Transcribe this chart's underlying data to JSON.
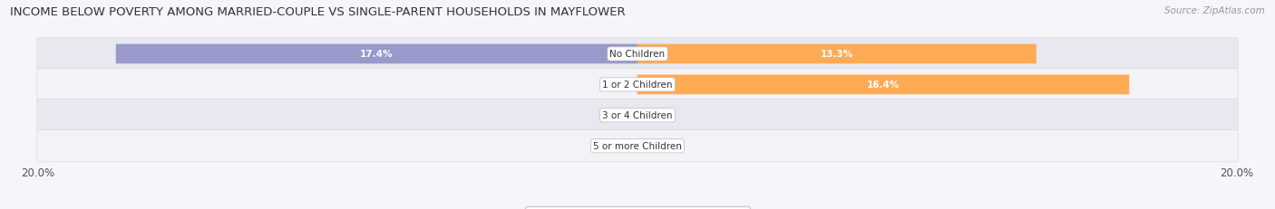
{
  "title": "INCOME BELOW POVERTY AMONG MARRIED-COUPLE VS SINGLE-PARENT HOUSEHOLDS IN MAYFLOWER",
  "source": "Source: ZipAtlas.com",
  "categories": [
    "No Children",
    "1 or 2 Children",
    "3 or 4 Children",
    "5 or more Children"
  ],
  "married_values": [
    17.4,
    0.0,
    0.0,
    0.0
  ],
  "single_values": [
    13.3,
    16.4,
    0.0,
    0.0
  ],
  "axis_max": 20.0,
  "married_color": "#9999cc",
  "single_color": "#ffaa55",
  "bar_height": 0.62,
  "row_bg_even": "#e8e8f0",
  "row_bg_odd": "#f2f2f7",
  "fig_bg": "#f5f5fa",
  "label_dark": "#555555",
  "title_fontsize": 9.5,
  "source_fontsize": 7.5,
  "tick_fontsize": 8.5,
  "legend_fontsize": 8.5,
  "category_fontsize": 7.5,
  "value_fontsize": 7.5
}
